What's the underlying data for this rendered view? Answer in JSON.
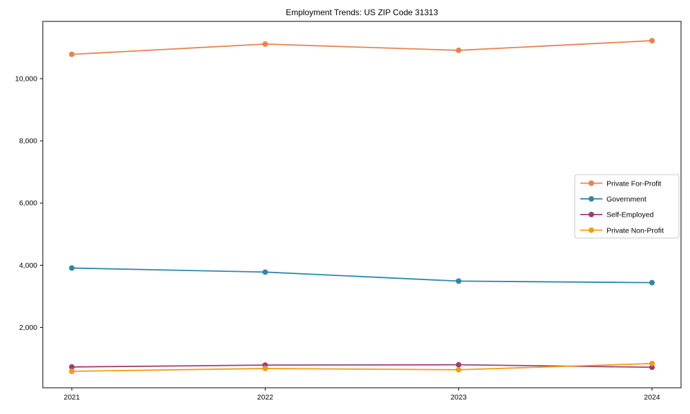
{
  "chart_data": {
    "type": "line",
    "title": "Employment Trends: US ZIP Code 31313",
    "x": [
      2021,
      2022,
      2023,
      2024
    ],
    "series": [
      {
        "name": "Private For-Profit",
        "color": "#e8824e",
        "values": [
          10780,
          11110,
          10910,
          11220
        ]
      },
      {
        "name": "Government",
        "color": "#2e86ab",
        "values": [
          3910,
          3780,
          3490,
          3440
        ]
      },
      {
        "name": "Self-Employed",
        "color": "#a23b72",
        "values": [
          730,
          790,
          800,
          720
        ]
      },
      {
        "name": "Private Non-Profit",
        "color": "#f39c12",
        "values": [
          590,
          680,
          640,
          840
        ]
      }
    ],
    "yticks": [
      2000,
      4000,
      6000,
      8000,
      10000
    ],
    "ylim": [
      60,
      11840
    ],
    "xlabel": "",
    "ylabel": "",
    "grid": false,
    "legend_position": "center-right",
    "marker": "circle",
    "frame_color": "#000000",
    "legend_border_color": "#c8c8c8"
  }
}
